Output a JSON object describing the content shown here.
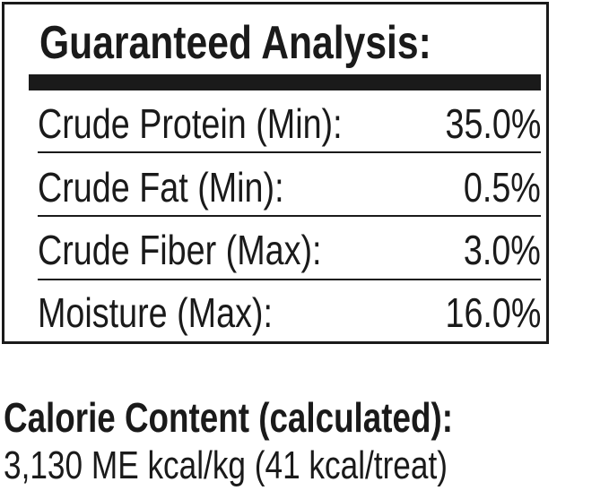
{
  "analysis": {
    "title": "Guaranteed Analysis:",
    "rows": [
      {
        "label": "Crude Protein (Min):",
        "value": "35.0%"
      },
      {
        "label": "Crude Fat (Min):",
        "value": "0.5%"
      },
      {
        "label": "Crude Fiber (Max):",
        "value": "3.0%"
      },
      {
        "label": "Moisture (Max):",
        "value": "16.0%"
      }
    ]
  },
  "calorie": {
    "heading": "Calorie Content (calculated):",
    "value": "3,130 ME kcal/kg (41 kcal/treat)"
  }
}
